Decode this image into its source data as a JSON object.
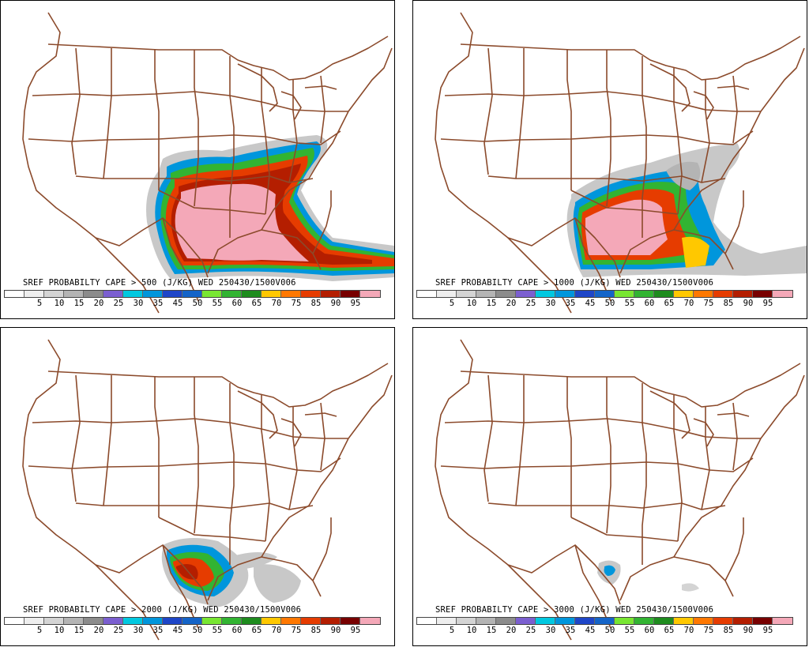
{
  "legend": {
    "tick_labels": [
      "5",
      "10",
      "15",
      "20",
      "25",
      "30",
      "35",
      "45",
      "50",
      "55",
      "60",
      "65",
      "70",
      "75",
      "85",
      "90",
      "95"
    ],
    "colors": [
      "#ffffff",
      "#eeeeee",
      "#d4d4d4",
      "#b4b4b4",
      "#8c8c8c",
      "#7b5fd0",
      "#00c8e0",
      "#0096dc",
      "#1e46c8",
      "#1464c8",
      "#78e632",
      "#32b432",
      "#1e8c1e",
      "#ffc800",
      "#ff7800",
      "#e63c00",
      "#b41e00",
      "#780000",
      "#f4a8b8"
    ]
  },
  "map": {
    "border_color": "#8b4a2b"
  },
  "panels": [
    {
      "caption": "SREF PROBABILTY CAPE > 500 (J/KG) WED 250430/1500V006"
    },
    {
      "caption": "SREF PROBABILTY CAPE > 1000 (J/KG) WED 250430/1500V006"
    },
    {
      "caption": "SREF PROBABILTY CAPE > 2000 (J/KG) WED 250430/1500V006"
    },
    {
      "caption": "SREF PROBABILTY CAPE > 3000 (J/KG) WED 250430/1500V006"
    }
  ]
}
